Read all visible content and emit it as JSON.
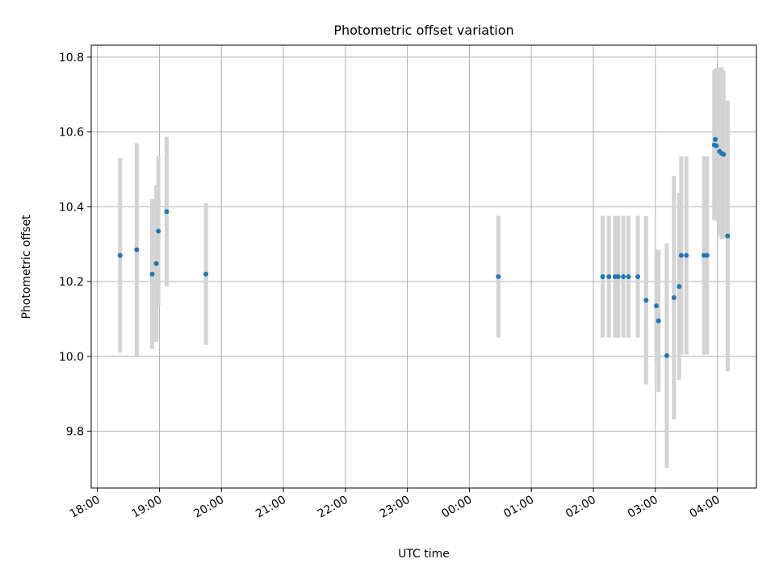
{
  "chart_data": {
    "type": "scatter",
    "title": "Photometric offset variation",
    "xlabel": "UTC time",
    "ylabel": "Photometric offset",
    "x_ticks": [
      "18:00",
      "19:00",
      "20:00",
      "21:00",
      "22:00",
      "23:00",
      "00:00",
      "01:00",
      "02:00",
      "03:00",
      "04:00"
    ],
    "y_ticks": [
      "9.8",
      "10.0",
      "10.2",
      "10.4",
      "10.6",
      "10.8"
    ],
    "ylim": [
      9.648,
      10.832
    ],
    "xlim_hours": [
      17.9,
      28.63
    ],
    "grid": true,
    "marker_color": "#1f77b4",
    "errorbar_color": "#d3d3d3",
    "points": [
      {
        "t": "18:22",
        "y": 10.27,
        "err": 0.26
      },
      {
        "t": "18:38",
        "y": 10.285,
        "err": 0.285
      },
      {
        "t": "18:53",
        "y": 10.22,
        "err": 0.2
      },
      {
        "t": "18:57",
        "y": 10.248,
        "err": 0.21
      },
      {
        "t": "18:59",
        "y": 10.335,
        "err": 0.2
      },
      {
        "t": "19:07",
        "y": 10.387,
        "err": 0.2
      },
      {
        "t": "19:45",
        "y": 10.22,
        "err": 0.19
      },
      {
        "t": "00:28",
        "y": 10.213,
        "err": 0.163
      },
      {
        "t": "02:09",
        "y": 10.213,
        "err": 0.163
      },
      {
        "t": "02:15",
        "y": 10.213,
        "err": 0.163
      },
      {
        "t": "02:21",
        "y": 10.213,
        "err": 0.163
      },
      {
        "t": "02:24",
        "y": 10.213,
        "err": 0.163
      },
      {
        "t": "02:29",
        "y": 10.213,
        "err": 0.163
      },
      {
        "t": "02:34",
        "y": 10.213,
        "err": 0.163
      },
      {
        "t": "02:43",
        "y": 10.213,
        "err": 0.163
      },
      {
        "t": "02:51",
        "y": 10.15,
        "err": 0.225
      },
      {
        "t": "03:01",
        "y": 10.135,
        "err": 0.15
      },
      {
        "t": "03:03",
        "y": 10.095,
        "err": 0.19
      },
      {
        "t": "03:11",
        "y": 10.002,
        "err": 0.3
      },
      {
        "t": "03:18",
        "y": 10.157,
        "err": 0.325
      },
      {
        "t": "03:23",
        "y": 10.187,
        "err": 0.25
      },
      {
        "t": "03:25",
        "y": 10.27,
        "err": 0.265
      },
      {
        "t": "03:30",
        "y": 10.27,
        "err": 0.265
      },
      {
        "t": "03:47",
        "y": 10.27,
        "err": 0.265
      },
      {
        "t": "03:50",
        "y": 10.27,
        "err": 0.265
      },
      {
        "t": "03:57",
        "y": 10.565,
        "err": 0.2
      },
      {
        "t": "03:58",
        "y": 10.58,
        "err": 0.19
      },
      {
        "t": "03:59",
        "y": 10.563,
        "err": 0.2
      },
      {
        "t": "04:02",
        "y": 10.548,
        "err": 0.225
      },
      {
        "t": "04:04",
        "y": 10.543,
        "err": 0.23
      },
      {
        "t": "04:06",
        "y": 10.54,
        "err": 0.225
      },
      {
        "t": "04:10",
        "y": 10.322,
        "err": 0.362
      }
    ]
  }
}
